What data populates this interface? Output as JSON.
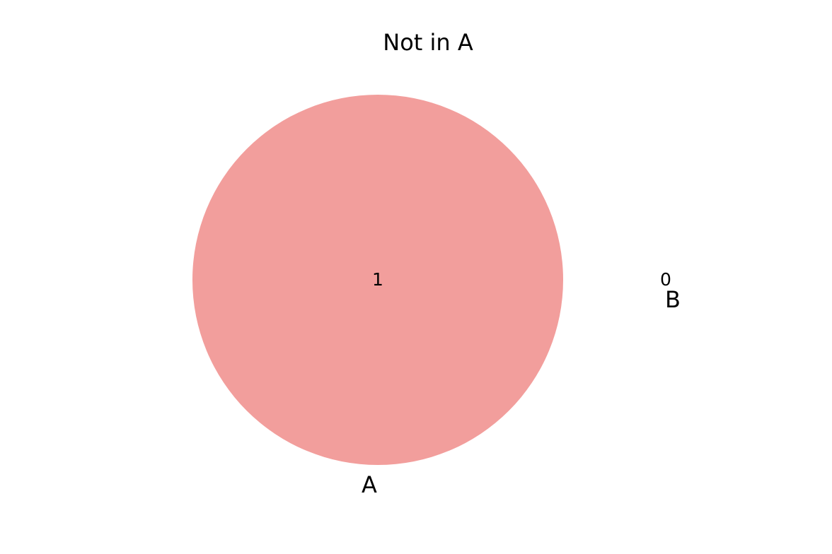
{
  "title": "Not in A",
  "sets": [
    {
      "label": "A",
      "only_count": "1",
      "color": "#f29e9c"
    },
    {
      "label": "B",
      "only_count": "0"
    }
  ]
}
